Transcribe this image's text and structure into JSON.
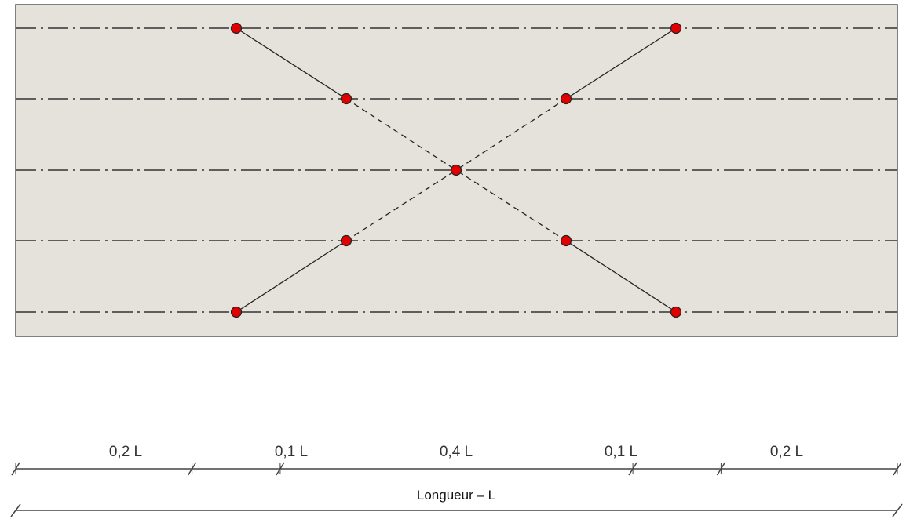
{
  "colors": {
    "panel_fill": "#e4e2da",
    "panel_stroke": "#555555",
    "axis_line": "#333333",
    "truss_line": "#222222",
    "node_fill": "#e00000",
    "node_stroke": "#222222",
    "dim_line": "#444444"
  },
  "segments": [
    {
      "label": "0,2 L",
      "fraction": 0.2
    },
    {
      "label": "0,1 L",
      "fraction": 0.1
    },
    {
      "label": "0,4 L",
      "fraction": 0.4
    },
    {
      "label": "0,1 L",
      "fraction": 0.1
    },
    {
      "label": "0,2 L",
      "fraction": 0.2
    }
  ],
  "total_label": "Longueur – L"
}
